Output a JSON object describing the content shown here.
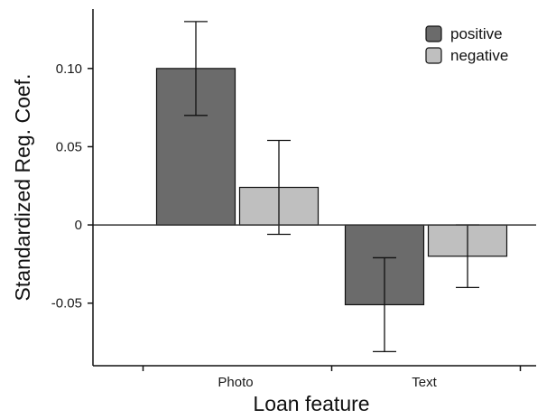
{
  "chart_data": {
    "type": "bar",
    "categories": [
      "Photo",
      "Text"
    ],
    "series": [
      {
        "name": "positive",
        "color": "#6b6b6b",
        "values": [
          0.1,
          -0.051
        ],
        "error": [
          [
            0.07,
            0.13
          ],
          [
            -0.081,
            -0.021
          ]
        ]
      },
      {
        "name": "negative",
        "color": "#bfbfbf",
        "values": [
          0.024,
          -0.02
        ],
        "error": [
          [
            -0.006,
            0.054
          ],
          [
            -0.04,
            0.0
          ]
        ]
      }
    ],
    "xlabel": "Loan feature",
    "ylabel": "Standardized Reg. Coef.",
    "ylim": [
      -0.09,
      0.138
    ],
    "yticks": [
      -0.05,
      0,
      0.05,
      0.1
    ],
    "ytick_labels": [
      "-0.05",
      "0",
      "0.05",
      "0.10"
    ],
    "zero_line": true,
    "grid": false,
    "legend_position": "top-right"
  }
}
